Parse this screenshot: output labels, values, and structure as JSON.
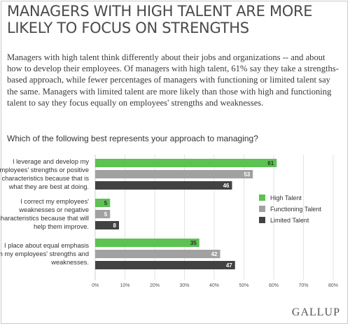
{
  "header": {
    "title": "MANAGERS WITH HIGH TALENT ARE MORE LIKELY TO FOCUS ON STRENGTHS",
    "description": "Managers with high talent think differently about their jobs and organizations -- and about how to develop their employees. Of managers with high talent, 61% say they take a strengths-based approach, while fewer percentages of managers with functioning or limited talent say the same. Managers with limited talent are more likely than those with high and functioning talent to say they focus equally on employees' strengths and weaknesses."
  },
  "brand": "GALLUP",
  "chart_data": {
    "type": "bar",
    "orientation": "horizontal",
    "title": "Which of the following best represents your approach to managing?",
    "categories": [
      [
        "I leverage and develop my",
        "employees' strengths or positive",
        "characteristics because that is",
        "what they are best at doing."
      ],
      [
        "I correct my employees'",
        "weaknesses or negative",
        "characteristics because that will",
        "help them improve."
      ],
      [
        "I place about equal emphasis",
        "on my employees' strengths and",
        "weaknesses."
      ]
    ],
    "series": [
      {
        "name": "High Talent",
        "color": "#5cc251",
        "values": [
          61,
          5,
          35
        ]
      },
      {
        "name": "Functioning Talent",
        "color": "#a1a1a1",
        "values": [
          53,
          5,
          42
        ]
      },
      {
        "name": "Limited Talent",
        "color": "#424242",
        "values": [
          46,
          8,
          47
        ]
      }
    ],
    "xlim": [
      0,
      80
    ],
    "xticks": [
      "0%",
      "10%",
      "20%",
      "30%",
      "40%",
      "50%",
      "60%",
      "70%",
      "80%"
    ],
    "grid": true,
    "legend_position": "right"
  }
}
